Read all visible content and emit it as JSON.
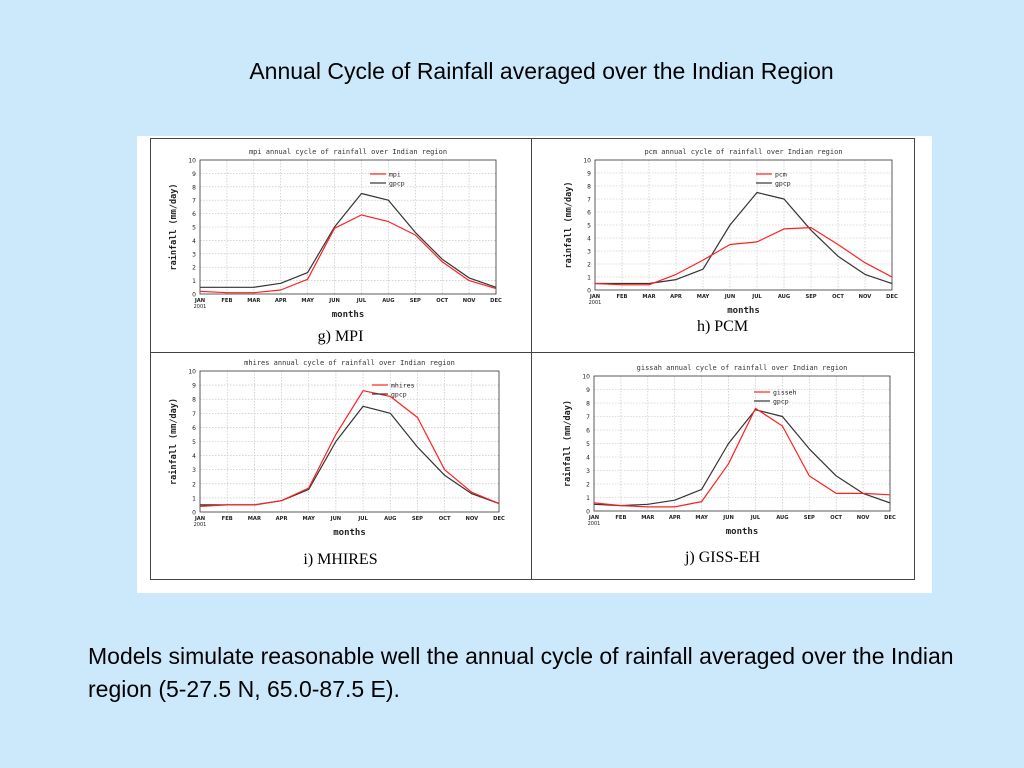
{
  "slide": {
    "title": "Annual Cycle of Rainfall averaged over the Indian Region",
    "body": "Models simulate reasonable well the annual cycle of rainfall averaged over the Indian region (5-27.5 N, 65.0-87.5 E)."
  },
  "colors": {
    "model": "#ff2020",
    "obs": "#333333",
    "background": "#cce9fb"
  },
  "chart_data": [
    {
      "type": "line",
      "title": "mpi annual cycle of rainfall over Indian region",
      "caption": "g) MPI",
      "xlabel": "months",
      "ylabel": "rainfall (mm/day)",
      "categories": [
        "JAN",
        "FEB",
        "MAR",
        "APR",
        "MAY",
        "JUN",
        "JUL",
        "AUG",
        "SEP",
        "OCT",
        "NOV",
        "DEC"
      ],
      "year_label": "2001",
      "ylim": [
        0,
        10
      ],
      "yticks": [
        0,
        1,
        2,
        3,
        4,
        5,
        6,
        7,
        8,
        9,
        10
      ],
      "grid": true,
      "legend": "top-right",
      "series": [
        {
          "name": "mpi",
          "color": "#ff2020",
          "values": [
            0.2,
            0.1,
            0.1,
            0.3,
            1.1,
            4.9,
            5.9,
            5.4,
            4.4,
            2.4,
            1.0,
            0.4
          ]
        },
        {
          "name": "gpcp",
          "color": "#333333",
          "values": [
            0.5,
            0.5,
            0.5,
            0.8,
            1.6,
            5.0,
            7.5,
            7.0,
            4.6,
            2.6,
            1.2,
            0.5
          ]
        }
      ]
    },
    {
      "type": "line",
      "title": "pcm annual cycle of rainfall over Indian region",
      "caption": "h) PCM",
      "xlabel": "months",
      "ylabel": "rainfall (mm/day)",
      "categories": [
        "JAN",
        "FEB",
        "MAR",
        "APR",
        "MAY",
        "JUN",
        "JUL",
        "AUG",
        "SEP",
        "OCT",
        "NOV",
        "DEC"
      ],
      "year_label": "2001",
      "ylim": [
        0,
        10
      ],
      "yticks": [
        0,
        1,
        2,
        3,
        4,
        5,
        6,
        7,
        8,
        9,
        10
      ],
      "grid": true,
      "legend": "top-right",
      "series": [
        {
          "name": "pcm",
          "color": "#ff2020",
          "values": [
            0.5,
            0.4,
            0.4,
            1.2,
            2.3,
            3.5,
            3.7,
            4.7,
            4.8,
            3.5,
            2.1,
            1.0
          ]
        },
        {
          "name": "gpcp",
          "color": "#333333",
          "values": [
            0.5,
            0.5,
            0.5,
            0.8,
            1.6,
            5.0,
            7.5,
            7.0,
            4.6,
            2.6,
            1.2,
            0.5
          ]
        }
      ]
    },
    {
      "type": "line",
      "title": "mhires annual cycle of rainfall over Indian region",
      "caption": "i) MHIRES",
      "xlabel": "months",
      "ylabel": "rainfall (mm/day)",
      "categories": [
        "JAN",
        "FEB",
        "MAR",
        "APR",
        "MAY",
        "JUN",
        "JUL",
        "AUG",
        "SEP",
        "OCT",
        "NOV",
        "DEC"
      ],
      "year_label": "2001",
      "ylim": [
        0,
        10
      ],
      "yticks": [
        0,
        1,
        2,
        3,
        4,
        5,
        6,
        7,
        8,
        9,
        10
      ],
      "grid": true,
      "legend": "top-right",
      "series": [
        {
          "name": "mhires",
          "color": "#ff2020",
          "values": [
            0.4,
            0.5,
            0.5,
            0.8,
            1.7,
            5.5,
            8.6,
            8.2,
            6.7,
            3.0,
            1.4,
            0.6
          ]
        },
        {
          "name": "gpcp",
          "color": "#333333",
          "values": [
            0.5,
            0.5,
            0.5,
            0.8,
            1.6,
            5.0,
            7.5,
            7.0,
            4.6,
            2.6,
            1.3,
            0.6
          ]
        }
      ]
    },
    {
      "type": "line",
      "title": "gissah annual cycle of rainfall over Indian region",
      "caption": "j) GISS-EH",
      "xlabel": "months",
      "ylabel": "rainfall (mm/day)",
      "categories": [
        "JAN",
        "FEB",
        "MAR",
        "APR",
        "MAY",
        "JUN",
        "JUL",
        "AUG",
        "SEP",
        "OCT",
        "NOV",
        "DEC"
      ],
      "year_label": "2001",
      "ylim": [
        0,
        10
      ],
      "yticks": [
        0,
        1,
        2,
        3,
        4,
        5,
        6,
        7,
        8,
        9,
        10
      ],
      "grid": true,
      "legend": "top-right",
      "series": [
        {
          "name": "gisseh",
          "color": "#ff2020",
          "values": [
            0.6,
            0.4,
            0.3,
            0.3,
            0.7,
            3.5,
            7.6,
            6.3,
            2.6,
            1.3,
            1.3,
            1.2
          ]
        },
        {
          "name": "gpcp",
          "color": "#333333",
          "values": [
            0.5,
            0.4,
            0.5,
            0.8,
            1.6,
            5.0,
            7.5,
            7.0,
            4.6,
            2.6,
            1.3,
            0.6
          ]
        }
      ]
    }
  ]
}
